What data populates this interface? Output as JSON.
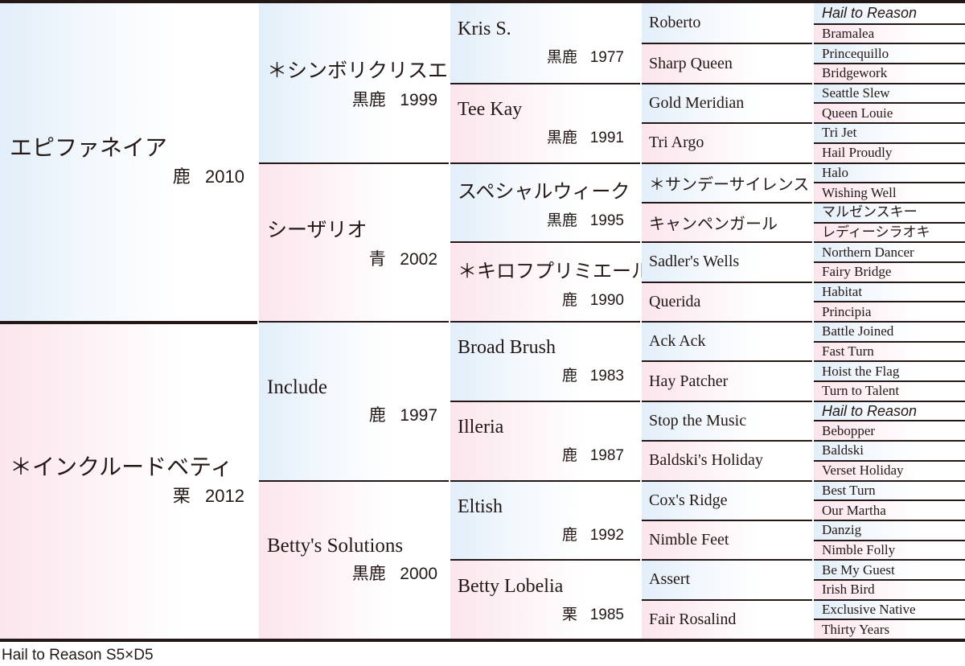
{
  "pedigree": {
    "gen1": [
      {
        "name": "エピファネイア",
        "coat": "鹿",
        "year": "2010"
      },
      {
        "name": "＊インクルードベティ",
        "coat": "栗",
        "year": "2012"
      }
    ],
    "gen2": [
      {
        "name": "＊シンボリクリスエス",
        "coat": "黒鹿",
        "year": "1999"
      },
      {
        "name": "シーザリオ",
        "coat": "青",
        "year": "2002"
      },
      {
        "name": "Include",
        "coat": "鹿",
        "year": "1997"
      },
      {
        "name": "Betty's Solutions",
        "coat": "黒鹿",
        "year": "2000"
      }
    ],
    "gen3": [
      {
        "name": "Kris S.",
        "coat": "黒鹿",
        "year": "1977"
      },
      {
        "name": "Tee Kay",
        "coat": "黒鹿",
        "year": "1991"
      },
      {
        "name": "スペシャルウィーク",
        "coat": "黒鹿",
        "year": "1995"
      },
      {
        "name": "＊キロフプリミエール",
        "coat": "鹿",
        "year": "1990"
      },
      {
        "name": "Broad Brush",
        "coat": "鹿",
        "year": "1983"
      },
      {
        "name": "Illeria",
        "coat": "鹿",
        "year": "1987"
      },
      {
        "name": "Eltish",
        "coat": "鹿",
        "year": "1992"
      },
      {
        "name": "Betty Lobelia",
        "coat": "栗",
        "year": "1985"
      }
    ],
    "gen4": [
      {
        "name": "Roberto"
      },
      {
        "name": "Sharp Queen"
      },
      {
        "name": "Gold Meridian"
      },
      {
        "name": "Tri Argo"
      },
      {
        "name": "＊サンデーサイレンス"
      },
      {
        "name": "キャンペンガール"
      },
      {
        "name": "Sadler's Wells"
      },
      {
        "name": "Querida"
      },
      {
        "name": "Ack Ack"
      },
      {
        "name": "Hay Patcher"
      },
      {
        "name": "Stop the Music"
      },
      {
        "name": "Baldski's Holiday"
      },
      {
        "name": "Cox's Ridge"
      },
      {
        "name": "Nimble Feet"
      },
      {
        "name": "Assert"
      },
      {
        "name": "Fair Rosalind"
      }
    ],
    "gen5": [
      {
        "name": "Hail to Reason",
        "italic": true
      },
      {
        "name": "Bramalea"
      },
      {
        "name": "Princequillo"
      },
      {
        "name": "Bridgework"
      },
      {
        "name": "Seattle Slew"
      },
      {
        "name": "Queen Louie"
      },
      {
        "name": "Tri Jet"
      },
      {
        "name": "Hail Proudly"
      },
      {
        "name": "Halo"
      },
      {
        "name": "Wishing Well"
      },
      {
        "name": "マルゼンスキー"
      },
      {
        "name": "レディーシラオキ"
      },
      {
        "name": "Northern Dancer"
      },
      {
        "name": "Fairy Bridge"
      },
      {
        "name": "Habitat"
      },
      {
        "name": "Principia"
      },
      {
        "name": "Battle Joined"
      },
      {
        "name": "Fast Turn"
      },
      {
        "name": "Hoist the Flag"
      },
      {
        "name": "Turn to Talent"
      },
      {
        "name": "Hail to Reason",
        "italic": true
      },
      {
        "name": "Bebopper"
      },
      {
        "name": "Baldski"
      },
      {
        "name": "Verset Holiday"
      },
      {
        "name": "Best Turn"
      },
      {
        "name": "Our Martha"
      },
      {
        "name": "Danzig"
      },
      {
        "name": "Nimble Folly"
      },
      {
        "name": "Be My Guest"
      },
      {
        "name": "Irish Bird"
      },
      {
        "name": "Exclusive Native"
      },
      {
        "name": "Thirty Years"
      }
    ]
  },
  "colors": {
    "sire_tint": "#e2eef9",
    "dam_tint": "#fbe5ed",
    "rule": "#231815"
  },
  "footer": {
    "inbreeding_note": "Hail to Reason S5×D5"
  }
}
